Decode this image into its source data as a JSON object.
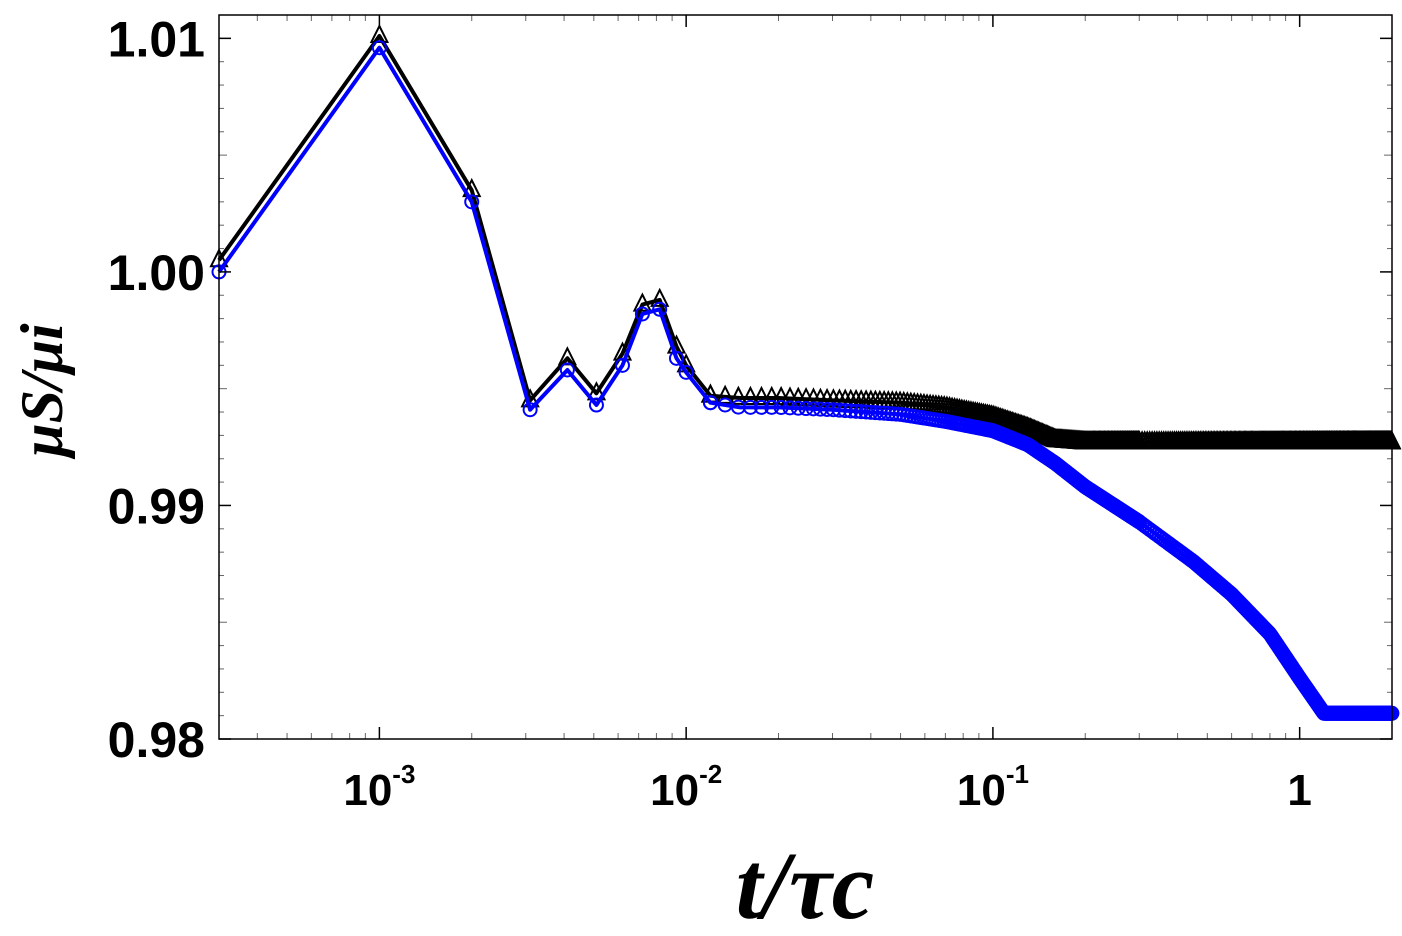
{
  "chart_data": {
    "type": "line",
    "xscale": "log",
    "xlim": [
      0.0003,
      2.0
    ],
    "ylim": [
      0.98,
      1.011
    ],
    "xlabel": "t/τc",
    "ylabel": "μS/μi",
    "y_ticks": [
      "1.01",
      "1.00",
      "0.99",
      "0.98"
    ],
    "y_tick_values": [
      1.01,
      1.0,
      0.99,
      0.98
    ],
    "x_ticks": [
      {
        "base": "10",
        "exp": "-3",
        "value": 0.001
      },
      {
        "base": "10",
        "exp": "-2",
        "value": 0.01
      },
      {
        "base": "10",
        "exp": "-1",
        "value": 0.1
      },
      {
        "base": "1",
        "exp": "",
        "value": 1
      }
    ],
    "grid": false,
    "legend": "none",
    "series": [
      {
        "marker": "triangle",
        "color": "#000000",
        "x": [
          0.0003,
          0.001,
          0.002,
          0.0031,
          0.0041,
          0.0051,
          0.0062,
          0.0072,
          0.0082,
          0.0093,
          0.01,
          0.012,
          0.015,
          0.02,
          0.03,
          0.05,
          0.07,
          0.1,
          0.13,
          0.16,
          0.2,
          0.3,
          0.5,
          1.0,
          1.5,
          2.0
        ],
        "y": [
          1.0005,
          1.0101,
          1.0035,
          0.9945,
          0.9963,
          0.9948,
          0.9965,
          0.9986,
          0.9988,
          0.9968,
          0.996,
          0.9947,
          0.9946,
          0.9946,
          0.9945,
          0.9944,
          0.9942,
          0.9938,
          0.9933,
          0.9928,
          0.9927,
          0.9927,
          0.9927,
          0.9927,
          0.9927,
          0.9927
        ]
      },
      {
        "marker": "circle",
        "color": "#0000ff",
        "x": [
          0.0003,
          0.001,
          0.002,
          0.0031,
          0.0041,
          0.0051,
          0.0062,
          0.0072,
          0.0082,
          0.0093,
          0.01,
          0.012,
          0.015,
          0.02,
          0.03,
          0.05,
          0.07,
          0.1,
          0.13,
          0.16,
          0.2,
          0.3,
          0.45,
          0.6,
          0.8,
          1.0,
          1.2,
          1.4,
          2.0
        ],
        "y": [
          1.0,
          1.0096,
          1.003,
          0.9941,
          0.9958,
          0.9943,
          0.996,
          0.9982,
          0.9984,
          0.9963,
          0.9957,
          0.9944,
          0.9942,
          0.9942,
          0.9941,
          0.9939,
          0.9936,
          0.9932,
          0.9926,
          0.9918,
          0.9908,
          0.9893,
          0.9876,
          0.9862,
          0.9845,
          0.9826,
          0.9811,
          0.9811,
          0.9811
        ]
      }
    ]
  }
}
